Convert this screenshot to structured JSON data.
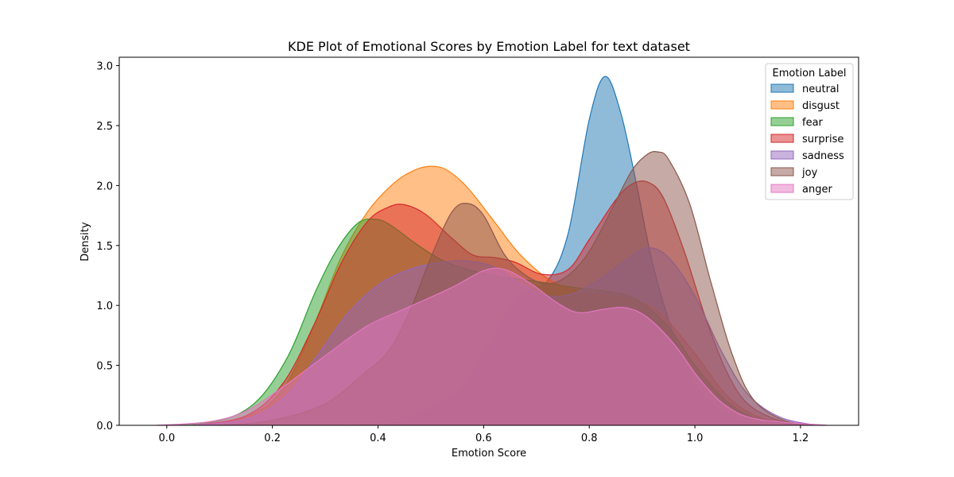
{
  "chart_data": {
    "type": "area",
    "title": "KDE Plot of Emotional Scores by Emotion Label for text dataset",
    "xlabel": "Emotion Score",
    "ylabel": "Density",
    "xlim": [
      -0.09,
      1.31
    ],
    "ylim": [
      0,
      3.07
    ],
    "xticks": [
      0.0,
      0.2,
      0.4,
      0.6,
      0.8,
      1.0,
      1.2
    ],
    "xtick_labels": [
      "0.0",
      "0.2",
      "0.4",
      "0.6",
      "0.8",
      "1.0",
      "1.2"
    ],
    "yticks": [
      0.0,
      0.5,
      1.0,
      1.5,
      2.0,
      2.5,
      3.0
    ],
    "ytick_labels": [
      "0.0",
      "0.5",
      "1.0",
      "1.5",
      "2.0",
      "2.5",
      "3.0"
    ],
    "legend": {
      "title": "Emotion Label",
      "placement": "top-right"
    },
    "fill_alpha": 0.5,
    "series": [
      {
        "name": "neutral",
        "color": "#1f77b4",
        "points": [
          [
            0.35,
            0
          ],
          [
            0.45,
            0.04
          ],
          [
            0.55,
            0.28
          ],
          [
            0.62,
            0.75
          ],
          [
            0.67,
            1.1
          ],
          [
            0.72,
            1.2
          ],
          [
            0.76,
            1.6
          ],
          [
            0.8,
            2.55
          ],
          [
            0.83,
            2.91
          ],
          [
            0.86,
            2.6
          ],
          [
            0.89,
            2.0
          ],
          [
            0.92,
            1.35
          ],
          [
            0.96,
            0.75
          ],
          [
            1.0,
            0.35
          ],
          [
            1.05,
            0.1
          ],
          [
            1.12,
            0
          ]
        ]
      },
      {
        "name": "disgust",
        "color": "#ff7f0e",
        "points": [
          [
            0.05,
            0
          ],
          [
            0.15,
            0.07
          ],
          [
            0.22,
            0.3
          ],
          [
            0.28,
            0.85
          ],
          [
            0.33,
            1.4
          ],
          [
            0.38,
            1.78
          ],
          [
            0.43,
            2.02
          ],
          [
            0.47,
            2.13
          ],
          [
            0.5,
            2.16
          ],
          [
            0.53,
            2.13
          ],
          [
            0.57,
            1.98
          ],
          [
            0.62,
            1.7
          ],
          [
            0.67,
            1.42
          ],
          [
            0.73,
            1.2
          ],
          [
            0.8,
            1.1
          ],
          [
            0.87,
            1.06
          ],
          [
            0.93,
            0.95
          ],
          [
            1.0,
            0.6
          ],
          [
            1.06,
            0.25
          ],
          [
            1.12,
            0.07
          ],
          [
            1.2,
            0
          ]
        ]
      },
      {
        "name": "fear",
        "color": "#2ca02c",
        "points": [
          [
            0.0,
            0
          ],
          [
            0.1,
            0.04
          ],
          [
            0.17,
            0.2
          ],
          [
            0.23,
            0.58
          ],
          [
            0.28,
            1.1
          ],
          [
            0.32,
            1.45
          ],
          [
            0.36,
            1.68
          ],
          [
            0.39,
            1.72
          ],
          [
            0.42,
            1.68
          ],
          [
            0.47,
            1.52
          ],
          [
            0.52,
            1.38
          ],
          [
            0.57,
            1.3
          ],
          [
            0.63,
            1.24
          ],
          [
            0.7,
            1.2
          ],
          [
            0.77,
            1.15
          ],
          [
            0.83,
            1.12
          ],
          [
            0.89,
            1.05
          ],
          [
            0.95,
            0.82
          ],
          [
            1.0,
            0.5
          ],
          [
            1.06,
            0.2
          ],
          [
            1.12,
            0.05
          ],
          [
            1.2,
            0
          ]
        ]
      },
      {
        "name": "surprise",
        "color": "#d62728",
        "points": [
          [
            0.05,
            0
          ],
          [
            0.15,
            0.08
          ],
          [
            0.22,
            0.35
          ],
          [
            0.28,
            0.85
          ],
          [
            0.33,
            1.35
          ],
          [
            0.38,
            1.7
          ],
          [
            0.42,
            1.82
          ],
          [
            0.45,
            1.84
          ],
          [
            0.49,
            1.76
          ],
          [
            0.54,
            1.56
          ],
          [
            0.58,
            1.42
          ],
          [
            0.62,
            1.4
          ],
          [
            0.66,
            1.36
          ],
          [
            0.71,
            1.26
          ],
          [
            0.76,
            1.3
          ],
          [
            0.8,
            1.55
          ],
          [
            0.85,
            1.88
          ],
          [
            0.88,
            2.01
          ],
          [
            0.91,
            2.03
          ],
          [
            0.94,
            1.9
          ],
          [
            0.98,
            1.45
          ],
          [
            1.02,
            0.9
          ],
          [
            1.06,
            0.45
          ],
          [
            1.1,
            0.18
          ],
          [
            1.16,
            0.04
          ],
          [
            1.22,
            0
          ]
        ]
      },
      {
        "name": "sadness",
        "color": "#9467bd",
        "points": [
          [
            0.05,
            0
          ],
          [
            0.15,
            0.05
          ],
          [
            0.22,
            0.22
          ],
          [
            0.28,
            0.55
          ],
          [
            0.34,
            0.92
          ],
          [
            0.4,
            1.17
          ],
          [
            0.46,
            1.3
          ],
          [
            0.52,
            1.36
          ],
          [
            0.57,
            1.37
          ],
          [
            0.62,
            1.32
          ],
          [
            0.67,
            1.18
          ],
          [
            0.72,
            1.08
          ],
          [
            0.77,
            1.1
          ],
          [
            0.82,
            1.22
          ],
          [
            0.87,
            1.38
          ],
          [
            0.91,
            1.48
          ],
          [
            0.95,
            1.4
          ],
          [
            1.0,
            1.08
          ],
          [
            1.05,
            0.62
          ],
          [
            1.1,
            0.26
          ],
          [
            1.16,
            0.07
          ],
          [
            1.23,
            0
          ]
        ]
      },
      {
        "name": "joy",
        "color": "#8c564b",
        "points": [
          [
            0.1,
            0
          ],
          [
            0.2,
            0.04
          ],
          [
            0.3,
            0.18
          ],
          [
            0.37,
            0.42
          ],
          [
            0.42,
            0.62
          ],
          [
            0.46,
            0.95
          ],
          [
            0.5,
            1.4
          ],
          [
            0.54,
            1.78
          ],
          [
            0.57,
            1.85
          ],
          [
            0.6,
            1.75
          ],
          [
            0.64,
            1.42
          ],
          [
            0.68,
            1.25
          ],
          [
            0.72,
            1.18
          ],
          [
            0.76,
            1.25
          ],
          [
            0.8,
            1.45
          ],
          [
            0.84,
            1.78
          ],
          [
            0.88,
            2.12
          ],
          [
            0.91,
            2.26
          ],
          [
            0.93,
            2.28
          ],
          [
            0.95,
            2.22
          ],
          [
            0.99,
            1.85
          ],
          [
            1.03,
            1.2
          ],
          [
            1.07,
            0.6
          ],
          [
            1.11,
            0.22
          ],
          [
            1.17,
            0.04
          ],
          [
            1.24,
            0
          ]
        ]
      },
      {
        "name": "anger",
        "color": "#e377c2",
        "points": [
          [
            -0.02,
            0
          ],
          [
            0.08,
            0.03
          ],
          [
            0.15,
            0.12
          ],
          [
            0.22,
            0.32
          ],
          [
            0.3,
            0.58
          ],
          [
            0.38,
            0.83
          ],
          [
            0.46,
            0.99
          ],
          [
            0.54,
            1.15
          ],
          [
            0.6,
            1.29
          ],
          [
            0.64,
            1.3
          ],
          [
            0.69,
            1.18
          ],
          [
            0.74,
            1.02
          ],
          [
            0.78,
            0.94
          ],
          [
            0.83,
            0.97
          ],
          [
            0.87,
            0.98
          ],
          [
            0.91,
            0.9
          ],
          [
            0.96,
            0.68
          ],
          [
            1.01,
            0.38
          ],
          [
            1.06,
            0.16
          ],
          [
            1.12,
            0.05
          ],
          [
            1.25,
            0
          ]
        ]
      }
    ]
  }
}
